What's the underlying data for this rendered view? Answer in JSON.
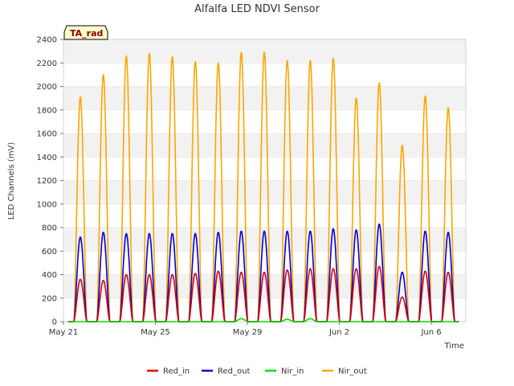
{
  "chart_data": {
    "type": "line",
    "title": "Alfalfa LED NDVI Sensor",
    "xlabel": "Time",
    "ylabel": "LED Channels (mV)",
    "ylim": [
      0,
      2400
    ],
    "yticks": [
      0,
      200,
      400,
      600,
      800,
      1000,
      1200,
      1400,
      1600,
      1800,
      2000,
      2200,
      2400
    ],
    "xlim_days": [
      0,
      17.5
    ],
    "xticks": [
      {
        "label": "May 21",
        "day": 0
      },
      {
        "label": "May 25",
        "day": 4
      },
      {
        "label": "May 29",
        "day": 8
      },
      {
        "label": "Jun 2",
        "day": 12
      },
      {
        "label": "Jun 6",
        "day": 16
      }
    ],
    "annotation": "TA_rad",
    "legend_position": "bottom",
    "grid": true,
    "series": [
      {
        "name": "Red_in",
        "color": "#dd0000",
        "daily_peaks": [
          360,
          350,
          400,
          400,
          400,
          410,
          430,
          420,
          420,
          440,
          450,
          450,
          450,
          470,
          210,
          430,
          420
        ]
      },
      {
        "name": "Red_out",
        "color": "#0000dd",
        "daily_peaks": [
          720,
          760,
          750,
          750,
          750,
          750,
          760,
          770,
          770,
          770,
          770,
          790,
          780,
          830,
          420,
          770,
          760
        ]
      },
      {
        "name": "Nir_in",
        "color": "#00dd00",
        "daily_peaks": [
          0,
          0,
          0,
          0,
          0,
          0,
          0,
          25,
          0,
          20,
          25,
          0,
          0,
          0,
          0,
          0,
          0
        ]
      },
      {
        "name": "Nir_out",
        "color": "#ffa500",
        "daily_peaks": [
          1910,
          2100,
          2260,
          2280,
          2250,
          2210,
          2200,
          2290,
          2290,
          2220,
          2220,
          2240,
          1900,
          2030,
          1500,
          1920,
          1820
        ]
      }
    ]
  }
}
